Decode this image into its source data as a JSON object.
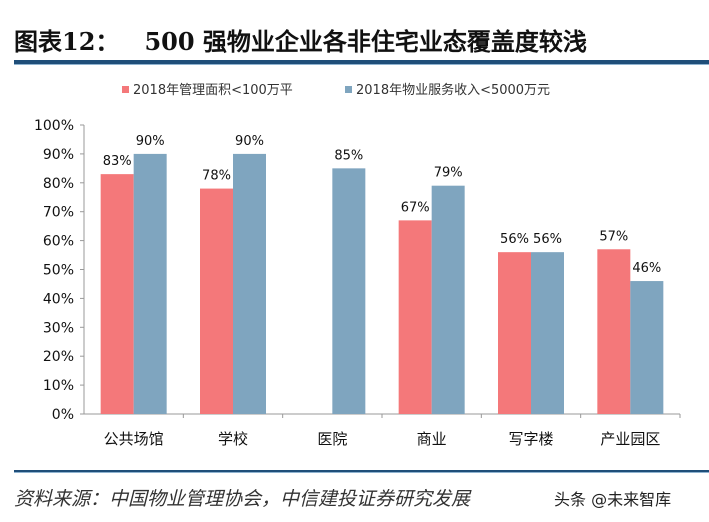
{
  "title": "图表12：   500 强物业企业各非住宅业态覆盖度较浅",
  "source": "资料来源：中国物业管理协会，中信建投证券研究发展",
  "watermark": "头条 @未来智库",
  "chart_data": {
    "type": "bar",
    "categories": [
      "公共场馆",
      "学校",
      "医院",
      "商业",
      "写字楼",
      "产业园区"
    ],
    "series": [
      {
        "name": "2018年管理面积<100万平",
        "color": "#f4787a",
        "values": [
          83,
          78,
          null,
          67,
          56,
          57
        ]
      },
      {
        "name": "2018年物业服务收入<5000万元",
        "color": "#7fa5bf",
        "values": [
          90,
          90,
          85,
          79,
          56,
          46
        ]
      }
    ],
    "ylim": [
      0,
      100
    ],
    "yticks": [
      "0%",
      "10%",
      "20%",
      "30%",
      "40%",
      "50%",
      "60%",
      "70%",
      "80%",
      "90%",
      "100%"
    ],
    "legend": "top",
    "grid": false,
    "data_labels": true
  }
}
